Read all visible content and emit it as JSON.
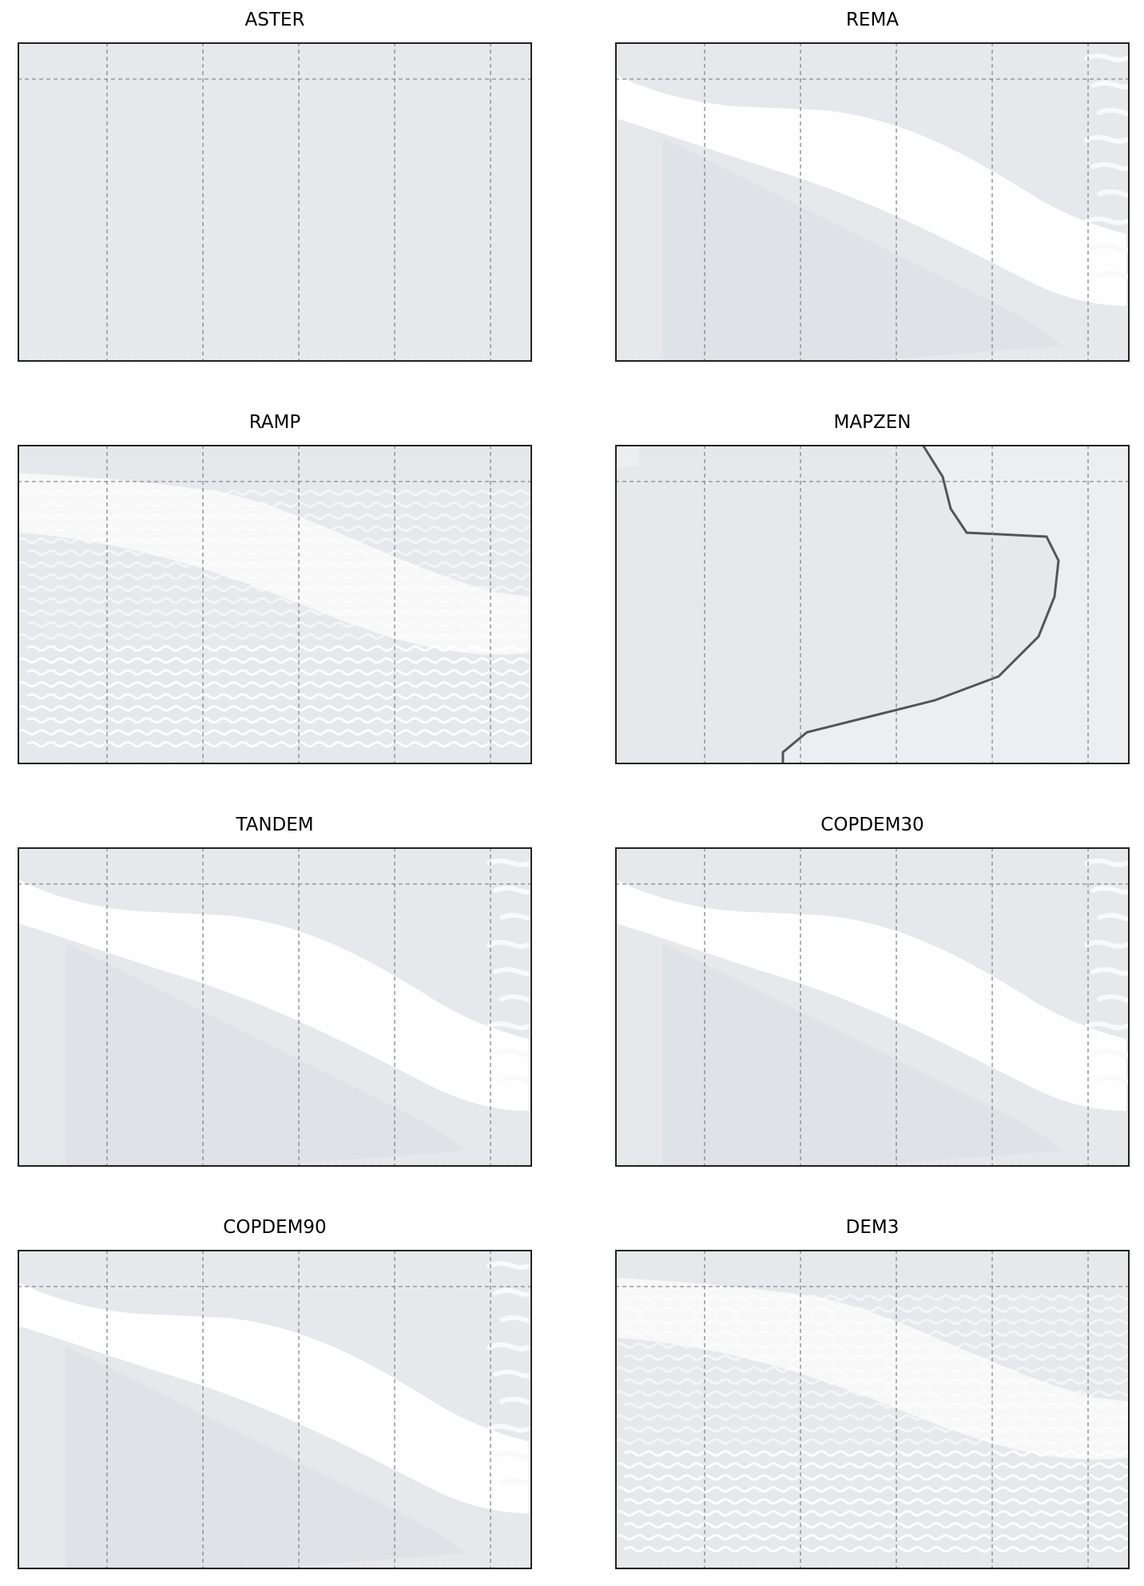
{
  "figure": {
    "panels": [
      {
        "title": "ASTER",
        "style": "flat"
      },
      {
        "title": "REMA",
        "style": "smooth"
      },
      {
        "title": "RAMP",
        "style": "rough"
      },
      {
        "title": "MAPZEN",
        "style": "coast"
      },
      {
        "title": "TANDEM",
        "style": "smooth"
      },
      {
        "title": "COPDEM30",
        "style": "smooth"
      },
      {
        "title": "COPDEM90",
        "style": "smooth"
      },
      {
        "title": "DEM3",
        "style": "rough"
      }
    ],
    "colors": {
      "background": "#e6e8ec",
      "highlight": "#ffffff",
      "grid": "#888888",
      "frame": "#222222",
      "coastline": "#555555"
    }
  }
}
